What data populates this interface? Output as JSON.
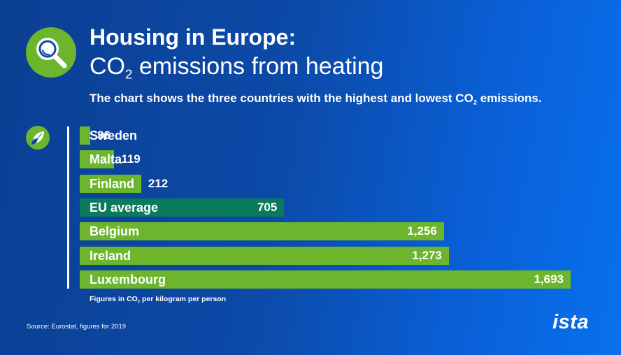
{
  "title": {
    "line1": "Housing in Europe:",
    "line2_prefix": "CO",
    "line2_sub": "2",
    "line2_suffix": " emissions from heating"
  },
  "subtitle": {
    "prefix": "The chart shows the three countries with the highest and lowest CO",
    "sub": "2",
    "suffix": " emissions."
  },
  "footnote": {
    "prefix": "Figures in CO",
    "sub": "2",
    "suffix": " per kilogram per person"
  },
  "source": "Source: Eurostat, figures for 2019",
  "logo": "ista",
  "icons": {
    "header": "magnifying-glass-icon",
    "chart": "leaf-icon"
  },
  "colors": {
    "bar": "#6cb52d",
    "highlight_bar": "#0a7a5c",
    "background_start": "#0b3f93",
    "background_end": "#0870ee"
  },
  "chart_data": {
    "type": "bar",
    "orientation": "horizontal",
    "categories": [
      "Sweden",
      "Malta",
      "Finland",
      "EU average",
      "Belgium",
      "Ireland",
      "Luxembourg"
    ],
    "values": [
      36,
      119,
      212,
      705,
      1256,
      1273,
      1693
    ],
    "value_labels": [
      "36",
      "119",
      "212",
      "705",
      "1,256",
      "1,273",
      "1,693"
    ],
    "highlight": "EU average",
    "xlabel": "Figures in CO2 per kilogram per person",
    "ylabel": "",
    "xlim": [
      0,
      1693
    ]
  }
}
